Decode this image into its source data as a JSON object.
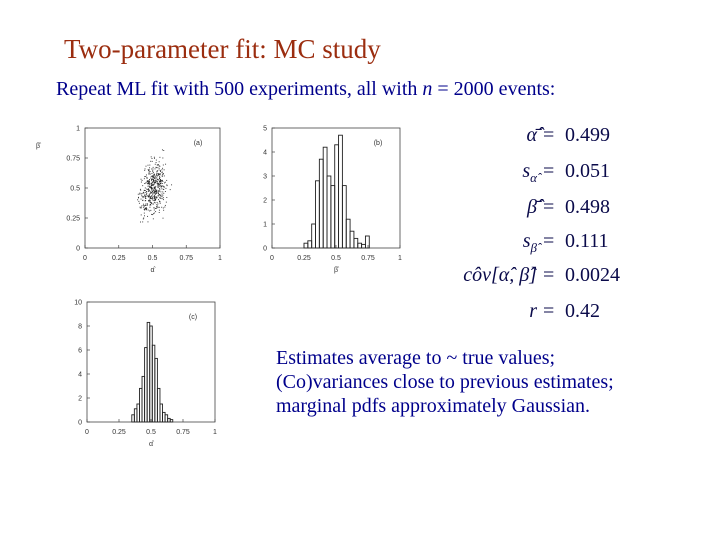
{
  "slide": {
    "title": "Two-parameter fit:  MC study",
    "subtitle_prefix": "Repeat ML fit with 500 experiments, all with ",
    "subtitle_var": "n",
    "subtitle_suffix": " = 2000 events:"
  },
  "results": [
    {
      "symbol": "α̂̄",
      "value": "0.499"
    },
    {
      "symbol": "s",
      "subscript": "α̂",
      "value": "0.051"
    },
    {
      "symbol": "β̂̄",
      "value": "0.498"
    },
    {
      "symbol": "s",
      "subscript": "β̂",
      "value": "0.111"
    },
    {
      "symbol": "côv[α̂, β̂]",
      "value": "0.0024"
    },
    {
      "symbol": "r",
      "value": "0.42"
    }
  ],
  "equals_sign": "=",
  "conclusions": [
    "Estimates average to ~ true values;",
    "(Co)variances close to previous estimates;",
    "marginal pdfs approximately Gaussian."
  ],
  "colors": {
    "title": "#9b2d0f",
    "text": "#00008b"
  },
  "chart_data": [
    {
      "type": "scatter",
      "panel_label": "(a)",
      "xlabel": "α̂",
      "ylabel": "β̂",
      "xlim": [
        0,
        1
      ],
      "ylim": [
        0,
        1
      ],
      "x_ticks": [
        "0",
        "0.25",
        "0.5",
        "0.75",
        "1"
      ],
      "y_ticks": [
        "0",
        "0.25",
        "0.5",
        "0.75",
        "1"
      ],
      "center": [
        0.5,
        0.5
      ],
      "spread": [
        0.05,
        0.11
      ],
      "correlation": 0.42,
      "n_points": 500
    },
    {
      "type": "bar",
      "style": "histogram",
      "panel_label": "(b)",
      "xlabel": "β̂",
      "xlim": [
        0,
        1
      ],
      "ylim": [
        0,
        5
      ],
      "x_ticks": [
        "0",
        "0.25",
        "0.5",
        "0.75",
        "1"
      ],
      "y_ticks": [
        "0",
        "1",
        "2",
        "3",
        "4",
        "5"
      ],
      "bin_edges": [
        0.25,
        0.28,
        0.31,
        0.34,
        0.37,
        0.4,
        0.43,
        0.46,
        0.49,
        0.52,
        0.55,
        0.58,
        0.61,
        0.64,
        0.67,
        0.7,
        0.73,
        0.76
      ],
      "values": [
        0.2,
        0.3,
        1.0,
        2.8,
        3.7,
        4.2,
        3.0,
        2.6,
        4.3,
        4.7,
        2.6,
        1.2,
        0.7,
        0.4,
        0.2,
        0.15,
        0.5
      ]
    },
    {
      "type": "bar",
      "style": "histogram",
      "panel_label": "(c)",
      "xlabel": "α̂",
      "xlim": [
        0,
        1
      ],
      "ylim": [
        0,
        10
      ],
      "x_ticks": [
        "0",
        "0.25",
        "0.5",
        "0.75",
        "1"
      ],
      "y_ticks": [
        "0",
        "2",
        "4",
        "6",
        "8",
        "10"
      ],
      "bin_edges": [
        0.35,
        0.37,
        0.39,
        0.41,
        0.43,
        0.45,
        0.47,
        0.49,
        0.51,
        0.53,
        0.55,
        0.57,
        0.59,
        0.61,
        0.63,
        0.65,
        0.67
      ],
      "values": [
        0.6,
        1.1,
        1.5,
        2.8,
        3.8,
        6.2,
        8.3,
        8.0,
        6.4,
        5.3,
        2.8,
        1.5,
        0.8,
        0.6,
        0.3,
        0.2
      ]
    }
  ]
}
